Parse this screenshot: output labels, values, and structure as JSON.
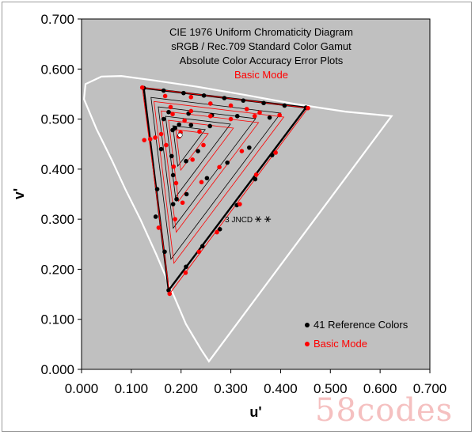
{
  "chart_data": {
    "type": "scatter",
    "title_lines": [
      "CIE 1976 Uniform Chromaticity Diagram",
      "sRGB / Rec.709 Standard Color Gamut",
      "Absolute Color Accuracy Error Plots",
      "Basic Mode"
    ],
    "xlabel": "u'",
    "ylabel": "v'",
    "xlim": [
      0,
      0.7
    ],
    "ylim": [
      0,
      0.7
    ],
    "xticks": [
      "0.000",
      "0.100",
      "0.200",
      "0.300",
      "0.400",
      "0.500",
      "0.600",
      "0.700"
    ],
    "yticks": [
      "0.000",
      "0.100",
      "0.200",
      "0.300",
      "0.400",
      "0.500",
      "0.600",
      "0.700"
    ],
    "grid": false,
    "background_color": "#c0c0c0",
    "legend": {
      "placement": "bottom-right",
      "entries": [
        {
          "label": "41 Reference Colors",
          "color": "#000000"
        },
        {
          "label": "Basic Mode",
          "color": "#ff0000"
        }
      ]
    },
    "annotation": {
      "text": "3 JNCD",
      "u": 0.355,
      "v": 0.3
    },
    "spectral_locus": [
      [
        0.256,
        0.016
      ],
      [
        0.24,
        0.04
      ],
      [
        0.21,
        0.09
      ],
      [
        0.18,
        0.16
      ],
      [
        0.15,
        0.23
      ],
      [
        0.118,
        0.3
      ],
      [
        0.088,
        0.36
      ],
      [
        0.06,
        0.42
      ],
      [
        0.03,
        0.48
      ],
      [
        0.005,
        0.54
      ],
      [
        0.008,
        0.57
      ],
      [
        0.04,
        0.585
      ],
      [
        0.08,
        0.586
      ],
      [
        0.14,
        0.578
      ],
      [
        0.23,
        0.565
      ],
      [
        0.33,
        0.548
      ],
      [
        0.43,
        0.53
      ],
      [
        0.53,
        0.515
      ],
      [
        0.623,
        0.506
      ]
    ],
    "white_point": {
      "u": 0.198,
      "v": 0.468
    },
    "gamut_triangle": [
      [
        0.451,
        0.523
      ],
      [
        0.125,
        0.562
      ],
      [
        0.175,
        0.158
      ]
    ],
    "series": [
      {
        "name": "41 Reference Colors",
        "color": "#000000",
        "points": [
          [
            0.451,
            0.523
          ],
          [
            0.125,
            0.562
          ],
          [
            0.175,
            0.158
          ],
          [
            0.408,
            0.527
          ],
          [
            0.366,
            0.532
          ],
          [
            0.325,
            0.537
          ],
          [
            0.287,
            0.542
          ],
          [
            0.246,
            0.547
          ],
          [
            0.205,
            0.552
          ],
          [
            0.165,
            0.557
          ],
          [
            0.383,
            0.428
          ],
          [
            0.349,
            0.38
          ],
          [
            0.312,
            0.328
          ],
          [
            0.278,
            0.28
          ],
          [
            0.243,
            0.246
          ],
          [
            0.21,
            0.205
          ],
          [
            0.165,
            0.5
          ],
          [
            0.16,
            0.44
          ],
          [
            0.152,
            0.36
          ],
          [
            0.149,
            0.305
          ],
          [
            0.167,
            0.235
          ],
          [
            0.378,
            0.503
          ],
          [
            0.313,
            0.506
          ],
          [
            0.262,
            0.508
          ],
          [
            0.215,
            0.511
          ],
          [
            0.175,
            0.514
          ],
          [
            0.337,
            0.443
          ],
          [
            0.293,
            0.413
          ],
          [
            0.252,
            0.382
          ],
          [
            0.211,
            0.35
          ],
          [
            0.184,
            0.33
          ],
          [
            0.183,
            0.478
          ],
          [
            0.181,
            0.426
          ],
          [
            0.184,
            0.388
          ],
          [
            0.191,
            0.34
          ],
          [
            0.258,
            0.486
          ],
          [
            0.22,
            0.488
          ],
          [
            0.196,
            0.489
          ],
          [
            0.234,
            0.436
          ],
          [
            0.21,
            0.416
          ],
          [
            0.188,
            0.482
          ]
        ]
      },
      {
        "name": "Basic Mode",
        "color": "#ff0000",
        "points": [
          [
            0.455,
            0.522
          ],
          [
            0.122,
            0.563
          ],
          [
            0.177,
            0.151
          ],
          [
            0.398,
            0.508
          ],
          [
            0.358,
            0.513
          ],
          [
            0.332,
            0.52
          ],
          [
            0.3,
            0.527
          ],
          [
            0.259,
            0.531
          ],
          [
            0.22,
            0.544
          ],
          [
            0.168,
            0.546
          ],
          [
            0.39,
            0.433
          ],
          [
            0.351,
            0.389
          ],
          [
            0.318,
            0.33
          ],
          [
            0.272,
            0.274
          ],
          [
            0.236,
            0.235
          ],
          [
            0.209,
            0.193
          ],
          [
            0.126,
            0.458
          ],
          [
            0.138,
            0.46
          ],
          [
            0.148,
            0.463
          ],
          [
            0.16,
            0.47
          ],
          [
            0.17,
            0.448
          ],
          [
            0.348,
            0.506
          ],
          [
            0.3,
            0.5
          ],
          [
            0.259,
            0.506
          ],
          [
            0.22,
            0.516
          ],
          [
            0.179,
            0.524
          ],
          [
            0.322,
            0.436
          ],
          [
            0.277,
            0.404
          ],
          [
            0.241,
            0.374
          ],
          [
            0.203,
            0.333
          ],
          [
            0.155,
            0.283
          ],
          [
            0.196,
            0.465
          ],
          [
            0.185,
            0.405
          ],
          [
            0.19,
            0.372
          ],
          [
            0.188,
            0.3
          ],
          [
            0.237,
            0.475
          ],
          [
            0.207,
            0.497
          ],
          [
            0.199,
            0.473
          ],
          [
            0.245,
            0.448
          ],
          [
            0.223,
            0.419
          ],
          [
            0.183,
            0.51
          ]
        ]
      }
    ]
  },
  "watermark": "58codes"
}
